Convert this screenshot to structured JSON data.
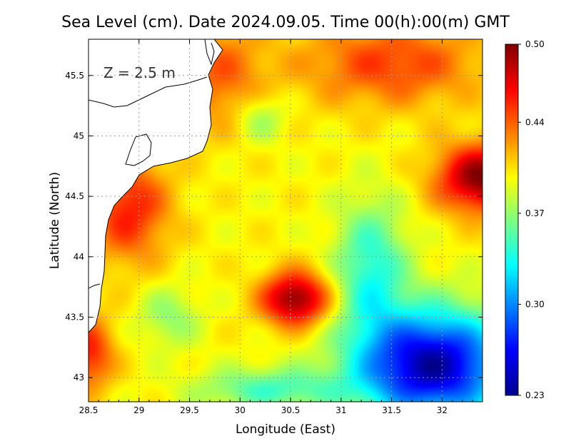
{
  "chart_data": {
    "type": "heatmap",
    "title": "Sea Level (cm). Date 2024.09.05. Time 00(h):00(m) GMT",
    "xlabel": "Longitude (East)",
    "ylabel": "Latitude (North)",
    "annotation": "Z = 2.5 m",
    "xlim": [
      28.5,
      32.4
    ],
    "ylim": [
      42.8,
      45.8
    ],
    "xticks": [
      28.5,
      29,
      29.5,
      30,
      30.5,
      31,
      31.5,
      32
    ],
    "xtick_labels": [
      "28.5",
      "29",
      "29.5",
      "30",
      "30.5",
      "31",
      "31.5",
      "32"
    ],
    "yticks": [
      43,
      43.5,
      44,
      44.5,
      45,
      45.5
    ],
    "ytick_labels": [
      "43",
      "43.5",
      "44",
      "44.5",
      "45",
      "45.5"
    ],
    "grid": true,
    "colorbar": {
      "range": [
        0.23,
        0.5
      ],
      "ticks": [
        0.23,
        0.3,
        0.37,
        0.44,
        0.5
      ],
      "tick_labels": [
        "0.23",
        "0.30",
        "0.37",
        "0.44",
        "0.50"
      ],
      "colormap": "jet"
    },
    "field_description_points": [
      {
        "lon": 30.5,
        "lat": 43.65,
        "value": 0.5
      },
      {
        "lon": 32.35,
        "lat": 44.65,
        "value": 0.5
      },
      {
        "lon": 31.9,
        "lat": 43.1,
        "value": 0.24
      },
      {
        "lon": 31.2,
        "lat": 43.6,
        "value": 0.32
      },
      {
        "lon": 30.2,
        "lat": 45.2,
        "value": 0.38
      },
      {
        "lon": 29.3,
        "lat": 44.2,
        "value": 0.41
      },
      {
        "lon": 29.3,
        "lat": 43.5,
        "value": 0.37
      }
    ]
  }
}
